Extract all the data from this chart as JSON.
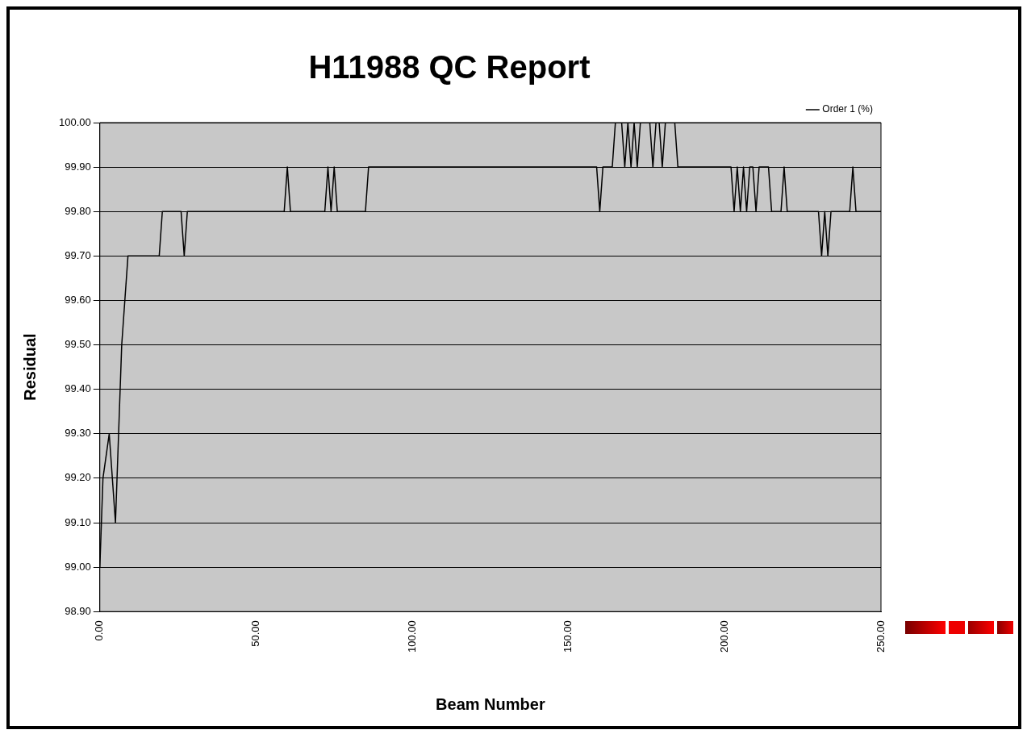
{
  "chart_data": {
    "type": "line",
    "title": "H11988 QC Report",
    "xlabel": "Beam Number",
    "ylabel": "Residual",
    "x": [
      0,
      1,
      3,
      5,
      6,
      7,
      8,
      9,
      19,
      20,
      26,
      27,
      28,
      59,
      60,
      61,
      72,
      73,
      74,
      75,
      76,
      85,
      86,
      159,
      160,
      161,
      164,
      165,
      167,
      168,
      169,
      170,
      171,
      172,
      173,
      176,
      177,
      178,
      179,
      180,
      181,
      184,
      185,
      202,
      203,
      204,
      205,
      206,
      207,
      208,
      209,
      210,
      211,
      214,
      215,
      218,
      219,
      220,
      230,
      231,
      232,
      233,
      234,
      240,
      241,
      242,
      250
    ],
    "series": [
      {
        "name": "Order 1 (%)",
        "color": "#000000",
        "values": [
          99.0,
          99.2,
          99.3,
          99.1,
          99.3,
          99.5,
          99.6,
          99.7,
          99.7,
          99.8,
          99.8,
          99.7,
          99.8,
          99.8,
          99.9,
          99.8,
          99.8,
          99.9,
          99.8,
          99.9,
          99.8,
          99.8,
          99.9,
          99.9,
          99.8,
          99.9,
          99.9,
          100.0,
          100.0,
          99.9,
          100.0,
          99.9,
          100.0,
          99.9,
          100.0,
          100.0,
          99.9,
          100.0,
          100.0,
          99.9,
          100.0,
          100.0,
          99.9,
          99.9,
          99.8,
          99.9,
          99.8,
          99.9,
          99.8,
          99.9,
          99.9,
          99.8,
          99.9,
          99.9,
          99.8,
          99.8,
          99.9,
          99.8,
          99.8,
          99.7,
          99.8,
          99.7,
          99.8,
          99.8,
          99.9,
          99.8,
          99.8
        ]
      }
    ],
    "xlim": [
      0,
      250
    ],
    "xticks": [
      {
        "value": 0,
        "label": "0.00"
      },
      {
        "value": 50,
        "label": "50.00"
      },
      {
        "value": 100,
        "label": "100.00"
      },
      {
        "value": 150,
        "label": "150.00"
      },
      {
        "value": 200,
        "label": "200.00"
      },
      {
        "value": 250,
        "label": "250.00"
      }
    ],
    "ylim": [
      98.9,
      100
    ],
    "yticks": [
      {
        "value": 98.9,
        "label": "98.90"
      },
      {
        "value": 99.0,
        "label": "99.00"
      },
      {
        "value": 99.1,
        "label": "99.10"
      },
      {
        "value": 99.2,
        "label": "99.20"
      },
      {
        "value": 99.3,
        "label": "99.30"
      },
      {
        "value": 99.4,
        "label": "99.40"
      },
      {
        "value": 99.5,
        "label": "99.50"
      },
      {
        "value": 99.6,
        "label": "99.60"
      },
      {
        "value": 99.7,
        "label": "99.70"
      },
      {
        "value": 99.8,
        "label": "99.80"
      },
      {
        "value": 99.9,
        "label": "99.90"
      },
      {
        "value": 100.0,
        "label": "100.00"
      }
    ],
    "grid": "y",
    "legend": "top right",
    "marker": "none",
    "line_style": "solid"
  }
}
